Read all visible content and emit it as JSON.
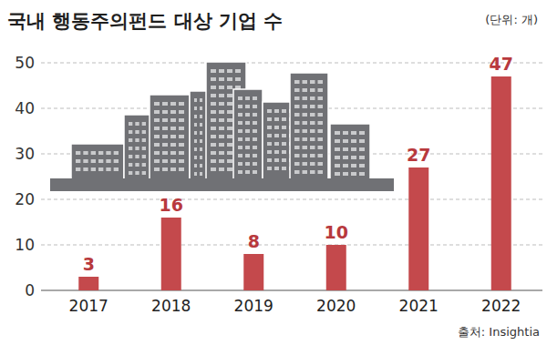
{
  "chart_data": {
    "type": "bar",
    "title": "국내 행동주의펀드 대상 기업 수",
    "subtitle": "(단위: 개)",
    "source": "출처: Insightia",
    "categories": [
      "2017",
      "2018",
      "2019",
      "2020",
      "2021",
      "2022"
    ],
    "values": [
      3,
      16,
      8,
      10,
      27,
      47
    ],
    "color": "#c4494c",
    "ylim": [
      0,
      50
    ],
    "yticks": [
      0,
      10,
      20,
      30,
      40,
      50
    ],
    "grid": true,
    "data_labels": true
  }
}
